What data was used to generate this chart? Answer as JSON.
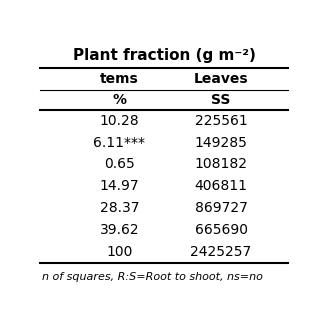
{
  "title": "Plant fraction (g m⁻²)",
  "col_headers_row1": [
    "tems",
    "Leaves"
  ],
  "col_headers_row2": [
    "%",
    "SS"
  ],
  "rows": [
    [
      "10.28",
      "225561"
    ],
    [
      "6.11***",
      "149285"
    ],
    [
      "0.65",
      "108182"
    ],
    [
      "14.97",
      "406811"
    ],
    [
      "28.37",
      "869727"
    ],
    [
      "39.62",
      "665690"
    ],
    [
      "100",
      "2425257"
    ]
  ],
  "footer": "n of squares, R:S=Root to shoot, ns=no",
  "bg_color": "#ffffff",
  "text_color": "#000000",
  "header_fontsize": 11,
  "subheader_fontsize": 10,
  "data_fontsize": 10,
  "footer_fontsize": 8
}
